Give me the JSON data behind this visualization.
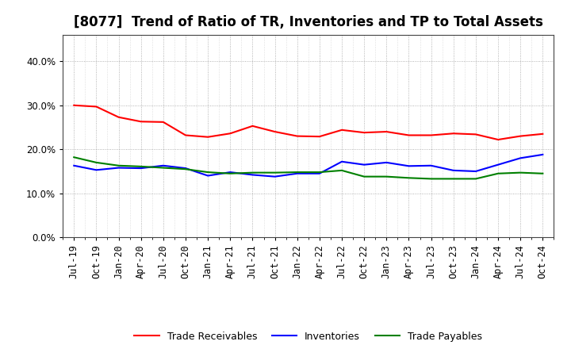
{
  "title": "[8077]  Trend of Ratio of TR, Inventories and TP to Total Assets",
  "x_labels": [
    "Jul-19",
    "Oct-19",
    "Jan-20",
    "Apr-20",
    "Jul-20",
    "Oct-20",
    "Jan-21",
    "Apr-21",
    "Jul-21",
    "Oct-21",
    "Jan-22",
    "Apr-22",
    "Jul-22",
    "Oct-22",
    "Jan-23",
    "Apr-23",
    "Jul-23",
    "Oct-23",
    "Jan-24",
    "Apr-24",
    "Jul-24",
    "Oct-24"
  ],
  "trade_receivables": [
    0.3,
    0.297,
    0.273,
    0.263,
    0.262,
    0.232,
    0.228,
    0.236,
    0.253,
    0.24,
    0.23,
    0.229,
    0.244,
    0.238,
    0.24,
    0.232,
    0.232,
    0.236,
    0.234,
    0.222,
    0.23,
    0.235
  ],
  "inventories": [
    0.163,
    0.153,
    0.158,
    0.157,
    0.163,
    0.157,
    0.14,
    0.148,
    0.142,
    0.138,
    0.145,
    0.145,
    0.172,
    0.165,
    0.17,
    0.162,
    0.163,
    0.152,
    0.15,
    0.165,
    0.18,
    0.188
  ],
  "trade_payables": [
    0.182,
    0.17,
    0.163,
    0.161,
    0.158,
    0.155,
    0.148,
    0.145,
    0.147,
    0.147,
    0.148,
    0.148,
    0.152,
    0.138,
    0.138,
    0.135,
    0.133,
    0.133,
    0.133,
    0.145,
    0.147,
    0.145
  ],
  "tr_color": "#FF0000",
  "inv_color": "#0000FF",
  "tp_color": "#008000",
  "ylim": [
    0.0,
    0.46
  ],
  "yticks": [
    0.0,
    0.1,
    0.2,
    0.3,
    0.4
  ],
  "background_color": "#FFFFFF",
  "plot_bg_color": "#FFFFFF",
  "grid_color": "#888888",
  "legend_labels": [
    "Trade Receivables",
    "Inventories",
    "Trade Payables"
  ],
  "title_fontsize": 12,
  "tick_fontsize": 8.5
}
